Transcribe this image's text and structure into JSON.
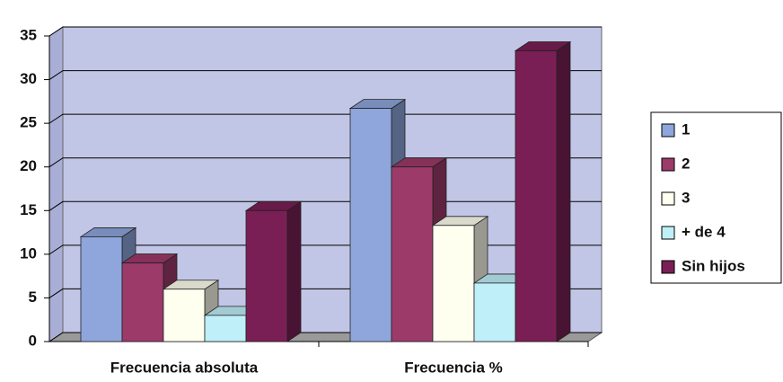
{
  "chart_data": {
    "type": "bar3d",
    "categories": [
      "Frecuencia absoluta",
      "Frecuencia %"
    ],
    "series": [
      {
        "name": "1",
        "color": "#8ea6dc",
        "values": [
          12,
          26.7
        ]
      },
      {
        "name": "2",
        "color": "#9c3a6a",
        "values": [
          9,
          20
        ]
      },
      {
        "name": "3",
        "color": "#fffff0",
        "values": [
          6,
          13.3
        ]
      },
      {
        "name": "+ de 4",
        "color": "#bfeff8",
        "values": [
          3,
          6.7
        ]
      },
      {
        "name": "Sin hijos",
        "color": "#7a1f55",
        "values": [
          15,
          33.3
        ]
      }
    ],
    "ylim": [
      0,
      35
    ],
    "yticks": [
      0,
      5,
      10,
      15,
      20,
      25,
      30,
      35
    ],
    "grid": true,
    "legend": "right"
  }
}
